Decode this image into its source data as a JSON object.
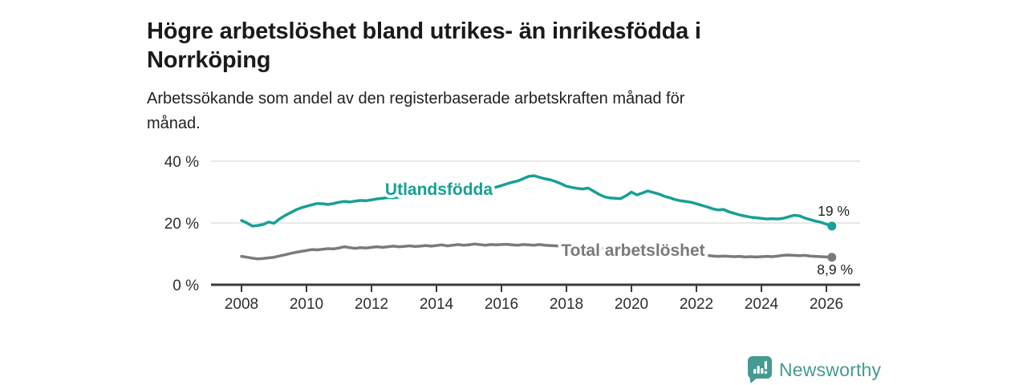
{
  "title": {
    "lines": [
      "Högre arbetslöshet bland utrikes- än inrikesfödda i",
      "Norrköping"
    ]
  },
  "subtitle": {
    "lines": [
      "Arbetssökande som andel av den registerbaserade arbetskraften månad för",
      "månad."
    ]
  },
  "colors": {
    "foreign_born_line": "#16a095",
    "total_line": "#7a7a7a",
    "grid": "#d9d9d9",
    "axis": "#3a3a3a",
    "axis_text": "#2e2e2e",
    "value_text": "#1f1f1f",
    "brand": "#459a92"
  },
  "chart_data": {
    "type": "line",
    "unit": "%",
    "x_start": 2008.0,
    "x_step_years": 0.16667,
    "x_end": 2026.17,
    "ylim": [
      0,
      40
    ],
    "grid": "horizontal-only",
    "legend": "inline-series-labels",
    "y_ticks": [
      {
        "value": 0,
        "label": "0 %"
      },
      {
        "value": 20,
        "label": "20 %"
      },
      {
        "value": 40,
        "label": "40 %"
      }
    ],
    "x_ticks": [
      {
        "value": 2008,
        "label": "2008"
      },
      {
        "value": 2010,
        "label": "2010"
      },
      {
        "value": 2012,
        "label": "2012"
      },
      {
        "value": 2014,
        "label": "2014"
      },
      {
        "value": 2016,
        "label": "2016"
      },
      {
        "value": 2018,
        "label": "2018"
      },
      {
        "value": 2020,
        "label": "2020"
      },
      {
        "value": 2022,
        "label": "2022"
      },
      {
        "value": 2024,
        "label": "2024"
      },
      {
        "value": 2026,
        "label": "2026"
      }
    ],
    "series": [
      {
        "name": "Utlandsfödda",
        "color": "#16a095",
        "end_label": "19 %",
        "last_value": 19.0,
        "values": [
          20.8,
          20.0,
          19.0,
          19.2,
          19.5,
          20.3,
          19.9,
          21.3,
          22.4,
          23.3,
          24.2,
          24.9,
          25.4,
          25.9,
          26.3,
          26.2,
          26.0,
          26.3,
          26.7,
          27.0,
          26.8,
          27.1,
          27.3,
          27.2,
          27.5,
          27.8,
          28.0,
          28.2,
          28.1,
          28.4,
          28.6,
          28.9,
          28.8,
          29.1,
          29.3,
          29.2,
          29.5,
          29.8,
          29.7,
          30.0,
          30.2,
          30.1,
          30.4,
          30.7,
          30.6,
          30.9,
          31.2,
          31.6,
          32.1,
          32.7,
          33.2,
          33.6,
          34.3,
          35.1,
          35.3,
          34.8,
          34.3,
          34.0,
          33.4,
          32.7,
          31.9,
          31.5,
          31.2,
          31.0,
          31.3,
          30.3,
          29.3,
          28.5,
          28.1,
          28.0,
          27.9,
          28.8,
          30.0,
          29.1,
          29.7,
          30.4,
          29.9,
          29.4,
          28.7,
          28.2,
          27.6,
          27.2,
          27.0,
          26.7,
          26.2,
          25.7,
          25.2,
          24.6,
          24.2,
          24.4,
          23.6,
          23.1,
          22.6,
          22.2,
          21.9,
          21.7,
          21.5,
          21.3,
          21.4,
          21.3,
          21.5,
          22.0,
          22.5,
          22.3,
          21.6,
          21.1,
          20.6,
          20.2,
          19.6,
          19.0
        ]
      },
      {
        "name": "Total arbetslöshet",
        "color": "#7a7a7a",
        "end_label": "8,9 %",
        "last_value": 8.9,
        "values": [
          9.2,
          8.9,
          8.6,
          8.4,
          8.5,
          8.7,
          8.9,
          9.3,
          9.7,
          10.1,
          10.5,
          10.8,
          11.1,
          11.4,
          11.3,
          11.5,
          11.7,
          11.6,
          11.9,
          12.3,
          12.0,
          11.8,
          12.0,
          11.9,
          12.1,
          12.3,
          12.1,
          12.3,
          12.5,
          12.3,
          12.4,
          12.6,
          12.4,
          12.5,
          12.7,
          12.5,
          12.7,
          12.9,
          12.6,
          12.8,
          13.0,
          12.8,
          12.9,
          13.2,
          13.0,
          12.8,
          13.0,
          12.9,
          13.0,
          13.1,
          12.9,
          12.8,
          13.0,
          12.9,
          12.8,
          13.0,
          12.8,
          12.7,
          12.6,
          12.5,
          12.4,
          12.3,
          12.2,
          12.1,
          12.0,
          11.9,
          11.7,
          11.6,
          11.5,
          11.4,
          11.3,
          11.4,
          11.6,
          12.0,
          12.3,
          12.2,
          12.0,
          11.8,
          11.6,
          11.3,
          11.0,
          10.7,
          10.4,
          10.2,
          10.0,
          9.8,
          9.5,
          9.3,
          9.2,
          9.3,
          9.2,
          9.1,
          9.2,
          9.0,
          9.1,
          9.0,
          9.1,
          9.2,
          9.1,
          9.3,
          9.5,
          9.6,
          9.5,
          9.4,
          9.5,
          9.3,
          9.2,
          9.1,
          9.0,
          8.9
        ]
      }
    ]
  },
  "footer": {
    "brand": "Newsworthy"
  }
}
